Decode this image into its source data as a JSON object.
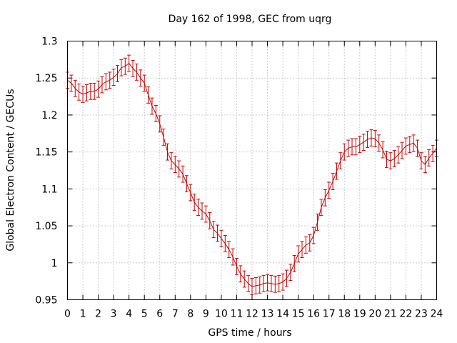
{
  "chart_data": {
    "type": "line",
    "title": "Day 162 of 1998, GEC from uqrg",
    "xlabel": "GPS time / hours",
    "ylabel": "Global Electron Content / GECUs",
    "xlim": [
      0,
      24
    ],
    "ylim": [
      0.95,
      1.3
    ],
    "x_ticks": [
      "0",
      "1",
      "2",
      "3",
      "4",
      "5",
      "6",
      "7",
      "8",
      "9",
      "10",
      "11",
      "12",
      "13",
      "14",
      "15",
      "16",
      "17",
      "18",
      "19",
      "20",
      "21",
      "22",
      "23",
      "24"
    ],
    "y_ticks": [
      "0.95",
      "1",
      "1.05",
      "1.1",
      "1.15",
      "1.2",
      "1.25",
      "1.3"
    ],
    "grid": true,
    "series_color": "#cc0000",
    "error": 0.011,
    "series": [
      {
        "name": "GEC",
        "step_hours": 0.25,
        "values": [
          1.247,
          1.243,
          1.236,
          1.231,
          1.228,
          1.23,
          1.232,
          1.232,
          1.235,
          1.241,
          1.245,
          1.247,
          1.251,
          1.256,
          1.264,
          1.266,
          1.27,
          1.263,
          1.258,
          1.25,
          1.243,
          1.227,
          1.212,
          1.202,
          1.188,
          1.17,
          1.15,
          1.138,
          1.133,
          1.127,
          1.12,
          1.107,
          1.095,
          1.082,
          1.075,
          1.07,
          1.066,
          1.057,
          1.045,
          1.04,
          1.033,
          1.026,
          1.018,
          1.008,
          0.995,
          0.985,
          0.978,
          0.972,
          0.968,
          0.969,
          0.97,
          0.972,
          0.973,
          0.972,
          0.971,
          0.972,
          0.974,
          0.979,
          0.987,
          0.999,
          1.012,
          1.018,
          1.024,
          1.027,
          1.037,
          1.055,
          1.075,
          1.088,
          1.098,
          1.11,
          1.124,
          1.138,
          1.15,
          1.155,
          1.157,
          1.157,
          1.16,
          1.163,
          1.167,
          1.169,
          1.168,
          1.162,
          1.153,
          1.14,
          1.138,
          1.141,
          1.146,
          1.152,
          1.158,
          1.16,
          1.162,
          1.155,
          1.138,
          1.133,
          1.142,
          1.148,
          1.155
        ]
      }
    ]
  }
}
